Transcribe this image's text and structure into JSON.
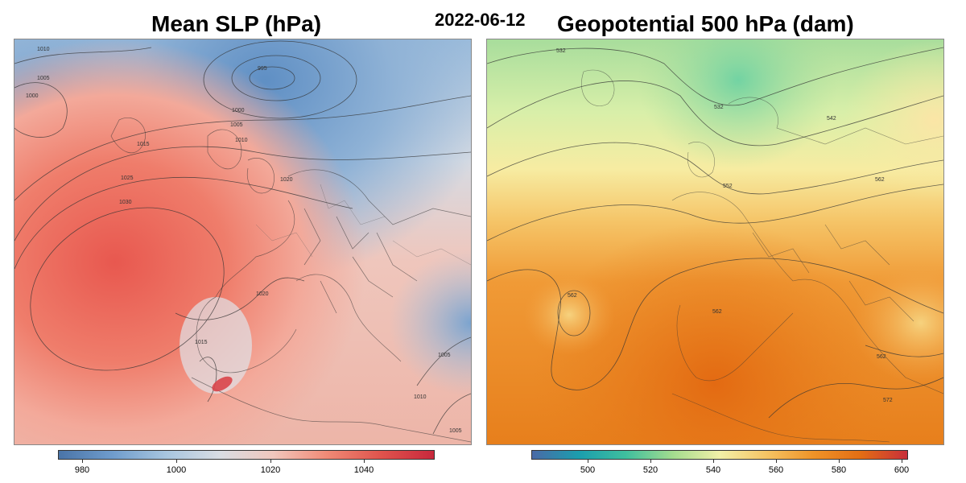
{
  "date": "2022-06-12",
  "left_panel": {
    "title": "Mean SLP (hPa)",
    "colorbar": {
      "ticks": [
        "980",
        "1000",
        "1020",
        "1040"
      ],
      "colors": [
        "#4a74a8",
        "#d9dde3",
        "#e0544d",
        "#c8283c"
      ]
    },
    "contour_labels": [
      "1010",
      "1005",
      "1000",
      "995",
      "1000",
      "1005",
      "1010",
      "1015",
      "1025",
      "1030",
      "1020",
      "1020",
      "1015",
      "1005",
      "1010",
      "1005"
    ]
  },
  "right_panel": {
    "title": "Geopotential 500 hPa (dam)",
    "colorbar": {
      "ticks": [
        "500",
        "520",
        "540",
        "560",
        "580",
        "600"
      ],
      "colors": [
        "#4a6aa6",
        "#1b9eae",
        "#a3dc8f",
        "#f2f0a8",
        "#ef9328",
        "#c82f3a"
      ]
    },
    "contour_labels": [
      "532",
      "532",
      "542",
      "552",
      "562",
      "562",
      "562",
      "562",
      "572"
    ]
  }
}
